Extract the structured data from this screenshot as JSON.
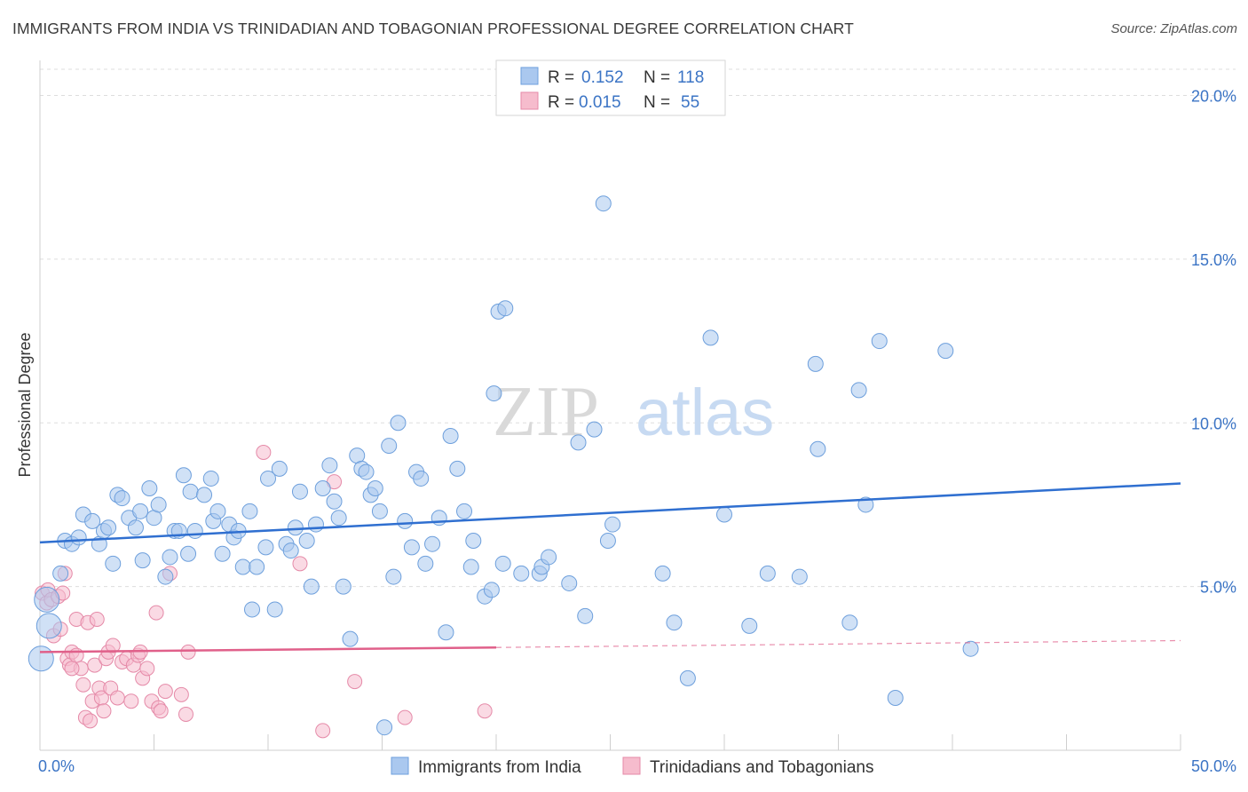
{
  "title": "IMMIGRANTS FROM INDIA VS TRINIDADIAN AND TOBAGONIAN PROFESSIONAL DEGREE CORRELATION CHART",
  "source": "Source: ZipAtlas.com",
  "watermark": {
    "zip": "ZIP",
    "atlas": "atlas"
  },
  "legend": {
    "r_label": "R =",
    "n_label": "N =",
    "rows": [
      {
        "r": "0.152",
        "n": "118"
      },
      {
        "r": "0.015",
        "n": "55"
      }
    ]
  },
  "colors": {
    "blue_fill": "#aac8ef",
    "blue_stroke": "#6d9fdc",
    "blue_line": "#2f6fd0",
    "pink_fill": "#f6bccd",
    "pink_stroke": "#e58aa8",
    "pink_line": "#e0608a",
    "tick_text": "#3b74c5",
    "grid": "#dddddd"
  },
  "chart_data": {
    "type": "scatter",
    "title": "IMMIGRANTS FROM INDIA VS TRINIDADIAN AND TOBAGONIAN PROFESSIONAL DEGREE CORRELATION CHART",
    "xlabel": "",
    "ylabel": "Professional Degree",
    "xlim": [
      0,
      50
    ],
    "ylim": [
      0,
      20.8
    ],
    "x_tick_labels": [
      "0.0%",
      "50.0%"
    ],
    "y_ticks": [
      5,
      10,
      15,
      20
    ],
    "y_tick_labels": [
      "5.0%",
      "10.0%",
      "15.0%",
      "20.0%"
    ],
    "grid": true,
    "legend_position": "top-center",
    "series": [
      {
        "name": "Immigrants from India",
        "color": "#6d9fdc",
        "r": 0.152,
        "n": 118,
        "trend": {
          "x": [
            0,
            50
          ],
          "y": [
            6.35,
            8.15
          ],
          "dashed_from": null
        },
        "points": [
          [
            0.05,
            2.8
          ],
          [
            0.3,
            4.6
          ],
          [
            0.4,
            3.8
          ],
          [
            0.9,
            5.4
          ],
          [
            1.1,
            6.4
          ],
          [
            1.4,
            6.3
          ],
          [
            1.7,
            6.5
          ],
          [
            1.9,
            7.2
          ],
          [
            2.3,
            7.0
          ],
          [
            2.6,
            6.3
          ],
          [
            2.8,
            6.7
          ],
          [
            3.0,
            6.8
          ],
          [
            3.2,
            5.7
          ],
          [
            3.4,
            7.8
          ],
          [
            3.6,
            7.7
          ],
          [
            3.9,
            7.1
          ],
          [
            4.2,
            6.8
          ],
          [
            4.4,
            7.3
          ],
          [
            4.5,
            5.8
          ],
          [
            4.8,
            8.0
          ],
          [
            5.0,
            7.1
          ],
          [
            5.2,
            7.5
          ],
          [
            5.5,
            5.3
          ],
          [
            5.7,
            5.9
          ],
          [
            5.9,
            6.7
          ],
          [
            6.1,
            6.7
          ],
          [
            6.3,
            8.4
          ],
          [
            6.5,
            6.0
          ],
          [
            6.6,
            7.9
          ],
          [
            6.8,
            6.7
          ],
          [
            7.2,
            7.8
          ],
          [
            7.5,
            8.3
          ],
          [
            7.6,
            7.0
          ],
          [
            7.8,
            7.3
          ],
          [
            8.0,
            6.0
          ],
          [
            8.3,
            6.9
          ],
          [
            8.5,
            6.5
          ],
          [
            8.7,
            6.7
          ],
          [
            8.9,
            5.6
          ],
          [
            9.2,
            7.3
          ],
          [
            9.5,
            5.6
          ],
          [
            9.3,
            4.3
          ],
          [
            9.9,
            6.2
          ],
          [
            10.0,
            8.3
          ],
          [
            10.3,
            4.3
          ],
          [
            10.5,
            8.6
          ],
          [
            10.8,
            6.3
          ],
          [
            11.0,
            6.1
          ],
          [
            11.2,
            6.8
          ],
          [
            11.4,
            7.9
          ],
          [
            11.7,
            6.4
          ],
          [
            11.9,
            5.0
          ],
          [
            12.1,
            6.9
          ],
          [
            12.4,
            8.0
          ],
          [
            12.7,
            8.7
          ],
          [
            12.9,
            7.6
          ],
          [
            13.1,
            7.1
          ],
          [
            13.3,
            5.0
          ],
          [
            13.6,
            3.4
          ],
          [
            13.9,
            9.0
          ],
          [
            14.1,
            8.6
          ],
          [
            14.3,
            8.5
          ],
          [
            14.5,
            7.8
          ],
          [
            14.7,
            8.0
          ],
          [
            14.9,
            7.3
          ],
          [
            15.1,
            0.7
          ],
          [
            15.3,
            9.3
          ],
          [
            15.5,
            5.3
          ],
          [
            15.7,
            10.0
          ],
          [
            16.0,
            7.0
          ],
          [
            16.3,
            6.2
          ],
          [
            16.5,
            8.5
          ],
          [
            16.7,
            8.3
          ],
          [
            16.9,
            5.7
          ],
          [
            17.2,
            6.3
          ],
          [
            17.5,
            7.1
          ],
          [
            17.8,
            3.6
          ],
          [
            18.0,
            9.6
          ],
          [
            18.3,
            8.6
          ],
          [
            18.6,
            7.3
          ],
          [
            18.9,
            5.6
          ],
          [
            19.0,
            6.4
          ],
          [
            19.5,
            4.7
          ],
          [
            19.8,
            4.9
          ],
          [
            19.9,
            10.9
          ],
          [
            20.1,
            13.4
          ],
          [
            20.4,
            13.5
          ],
          [
            20.3,
            5.7
          ],
          [
            21.1,
            5.4
          ],
          [
            21.9,
            5.4
          ],
          [
            22.0,
            5.6
          ],
          [
            22.3,
            5.9
          ],
          [
            23.2,
            5.1
          ],
          [
            23.6,
            9.4
          ],
          [
            23.9,
            4.1
          ],
          [
            24.3,
            9.8
          ],
          [
            24.7,
            16.7
          ],
          [
            24.9,
            6.4
          ],
          [
            25.1,
            6.9
          ],
          [
            27.3,
            5.4
          ],
          [
            27.8,
            3.9
          ],
          [
            28.4,
            2.2
          ],
          [
            29.4,
            12.6
          ],
          [
            30.0,
            7.2
          ],
          [
            31.1,
            3.8
          ],
          [
            31.9,
            5.4
          ],
          [
            33.3,
            5.3
          ],
          [
            34.0,
            11.8
          ],
          [
            34.1,
            9.2
          ],
          [
            35.5,
            3.9
          ],
          [
            35.9,
            11.0
          ],
          [
            36.2,
            7.5
          ],
          [
            36.8,
            12.5
          ],
          [
            37.5,
            1.6
          ],
          [
            39.7,
            12.2
          ],
          [
            40.8,
            3.1
          ]
        ]
      },
      {
        "name": "Trinidadians and Tobagonians",
        "color": "#e58aa8",
        "r": 0.015,
        "n": 55,
        "trend": {
          "x": [
            0,
            50
          ],
          "y": [
            3.0,
            3.35
          ],
          "dashed_from": 20
        },
        "points": [
          [
            0.1,
            4.8
          ],
          [
            0.3,
            4.5
          ],
          [
            0.35,
            4.9
          ],
          [
            0.5,
            4.6
          ],
          [
            0.6,
            3.5
          ],
          [
            0.8,
            4.7
          ],
          [
            0.9,
            3.7
          ],
          [
            1.0,
            4.8
          ],
          [
            1.1,
            5.4
          ],
          [
            1.2,
            2.8
          ],
          [
            1.3,
            2.6
          ],
          [
            1.4,
            3.0
          ],
          [
            1.6,
            2.9
          ],
          [
            1.6,
            4.0
          ],
          [
            1.8,
            2.5
          ],
          [
            1.9,
            2.0
          ],
          [
            2.0,
            1.0
          ],
          [
            2.1,
            3.9
          ],
          [
            2.2,
            0.9
          ],
          [
            2.3,
            1.5
          ],
          [
            2.4,
            2.6
          ],
          [
            2.5,
            4.0
          ],
          [
            2.6,
            1.9
          ],
          [
            2.7,
            1.6
          ],
          [
            2.8,
            1.2
          ],
          [
            2.9,
            2.8
          ],
          [
            3.0,
            3.0
          ],
          [
            3.1,
            1.9
          ],
          [
            3.2,
            3.2
          ],
          [
            3.4,
            1.6
          ],
          [
            3.6,
            2.7
          ],
          [
            3.8,
            2.8
          ],
          [
            4.0,
            1.5
          ],
          [
            4.1,
            2.6
          ],
          [
            4.3,
            2.9
          ],
          [
            4.4,
            3.0
          ],
          [
            4.5,
            2.2
          ],
          [
            4.7,
            2.5
          ],
          [
            4.9,
            1.5
          ],
          [
            5.1,
            4.2
          ],
          [
            5.2,
            1.3
          ],
          [
            5.3,
            1.2
          ],
          [
            5.5,
            1.8
          ],
          [
            5.7,
            5.4
          ],
          [
            6.2,
            1.7
          ],
          [
            6.4,
            1.1
          ],
          [
            6.5,
            3.0
          ],
          [
            9.8,
            9.1
          ],
          [
            11.4,
            5.7
          ],
          [
            12.4,
            0.6
          ],
          [
            12.9,
            8.2
          ],
          [
            13.8,
            2.1
          ],
          [
            19.5,
            1.2
          ],
          [
            16.0,
            1.0
          ],
          [
            1.4,
            2.5
          ]
        ]
      }
    ]
  }
}
